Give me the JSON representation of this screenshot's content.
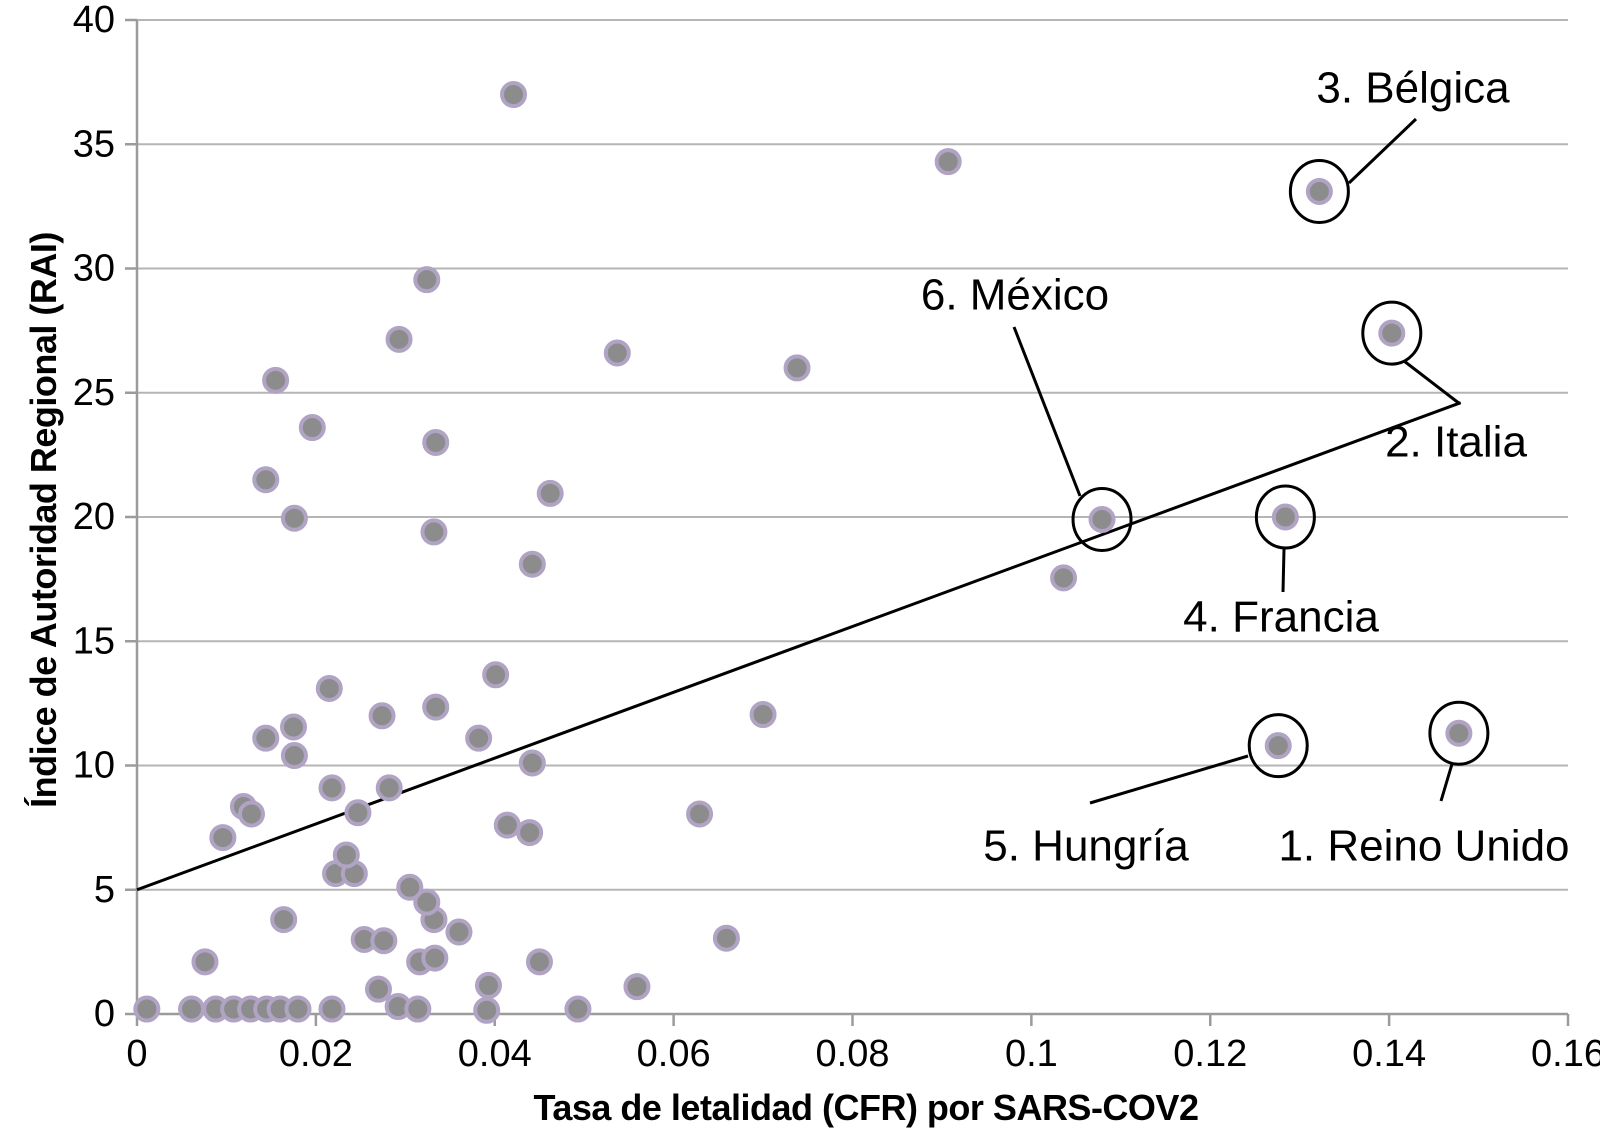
{
  "chart_data": {
    "type": "scatter",
    "title": "",
    "xlabel": "Tasa de letalidad (CFR) por SARS-COV2",
    "ylabel": "Índice de Autoridad Regional (RAI)",
    "xlim": [
      0,
      0.16
    ],
    "ylim": [
      0,
      40
    ],
    "grid": "horizontal-only",
    "legend": "none",
    "xticks": {
      "values": [
        0,
        0.02,
        0.04,
        0.06,
        0.08,
        0.1,
        0.12,
        0.14,
        0.16
      ],
      "labels": [
        "0",
        "0.02",
        "0.04",
        "0.06",
        "0.08",
        "0.1",
        "0.12",
        "0.14",
        "0.16"
      ]
    },
    "yticks": {
      "values": [
        0,
        5,
        10,
        15,
        20,
        25,
        30,
        35,
        40
      ],
      "labels": [
        "0",
        "5",
        "10",
        "15",
        "20",
        "25",
        "30",
        "35",
        "40"
      ]
    },
    "colors": {
      "marker_fill": "#8c8c8c",
      "marker_stroke": "#b0a3c4",
      "gridline": "#b5b5b5",
      "axis": "#9b9b9b",
      "annotation": "#000000",
      "text": "#000000",
      "background": "#ffffff"
    },
    "points": [
      [
        0.0011,
        0.2
      ],
      [
        0.0061,
        0.2
      ],
      [
        0.0088,
        0.2
      ],
      [
        0.0108,
        0.2
      ],
      [
        0.0127,
        0.2
      ],
      [
        0.0145,
        0.2
      ],
      [
        0.016,
        0.2
      ],
      [
        0.018,
        0.2
      ],
      [
        0.0218,
        0.2
      ],
      [
        0.0292,
        0.3
      ],
      [
        0.0314,
        0.2
      ],
      [
        0.0391,
        0.15
      ],
      [
        0.0493,
        0.2
      ],
      [
        0.027,
        1.0
      ],
      [
        0.0393,
        1.15
      ],
      [
        0.0559,
        1.1
      ],
      [
        0.0076,
        2.1
      ],
      [
        0.0316,
        2.1
      ],
      [
        0.0333,
        2.25
      ],
      [
        0.045,
        2.1
      ],
      [
        0.0254,
        3.0
      ],
      [
        0.0276,
        2.95
      ],
      [
        0.0164,
        3.8
      ],
      [
        0.0332,
        3.8
      ],
      [
        0.036,
        3.3
      ],
      [
        0.0659,
        3.05
      ],
      [
        0.0324,
        4.5
      ],
      [
        0.0305,
        5.1
      ],
      [
        0.0222,
        5.65
      ],
      [
        0.0243,
        5.65
      ],
      [
        0.0234,
        6.4
      ],
      [
        0.0096,
        7.1
      ],
      [
        0.0414,
        7.6
      ],
      [
        0.0439,
        7.3
      ],
      [
        0.0119,
        8.35
      ],
      [
        0.0128,
        8.05
      ],
      [
        0.0247,
        8.1
      ],
      [
        0.0629,
        8.05
      ],
      [
        0.0218,
        9.1
      ],
      [
        0.0282,
        9.1
      ],
      [
        0.0176,
        10.4
      ],
      [
        0.0442,
        10.1
      ],
      [
        0.0144,
        11.1
      ],
      [
        0.0175,
        11.55
      ],
      [
        0.0382,
        11.1
      ],
      [
        0.0274,
        12.0
      ],
      [
        0.0334,
        12.35
      ],
      [
        0.07,
        12.05
      ],
      [
        0.0215,
        13.1
      ],
      [
        0.0401,
        13.65
      ],
      [
        0.1036,
        17.55
      ],
      [
        0.0442,
        18.1
      ],
      [
        0.0176,
        19.95
      ],
      [
        0.0332,
        19.4
      ],
      [
        0.0462,
        20.95
      ],
      [
        0.0144,
        21.5
      ],
      [
        0.0196,
        23.6
      ],
      [
        0.0334,
        23.0
      ],
      [
        0.0155,
        25.5
      ],
      [
        0.0537,
        26.6
      ],
      [
        0.0738,
        26.0
      ],
      [
        0.0293,
        27.15
      ],
      [
        0.0324,
        29.55
      ],
      [
        0.0907,
        34.3
      ],
      [
        0.0421,
        37.0
      ]
    ],
    "labeled_points": [
      {
        "label": "1. Reino Unido",
        "slug": "reino-unido",
        "cfr": 0.1478,
        "rai": 11.3
      },
      {
        "label": "2. Italia",
        "slug": "italia",
        "cfr": 0.1403,
        "rai": 27.4
      },
      {
        "label": "3. Bélgica",
        "slug": "belgica",
        "cfr": 0.1322,
        "rai": 33.1
      },
      {
        "label": "4. Francia",
        "slug": "francia",
        "cfr": 0.1284,
        "rai": 20.0
      },
      {
        "label": "5. Hungría",
        "slug": "hungria",
        "cfr": 0.1276,
        "rai": 10.8
      },
      {
        "label": "6. México",
        "slug": "mexico",
        "cfr": 0.1079,
        "rai": 19.9
      }
    ],
    "trendline": {
      "x1": 0,
      "y1": 5.0,
      "x2": 0.148,
      "y2": 24.6
    }
  }
}
